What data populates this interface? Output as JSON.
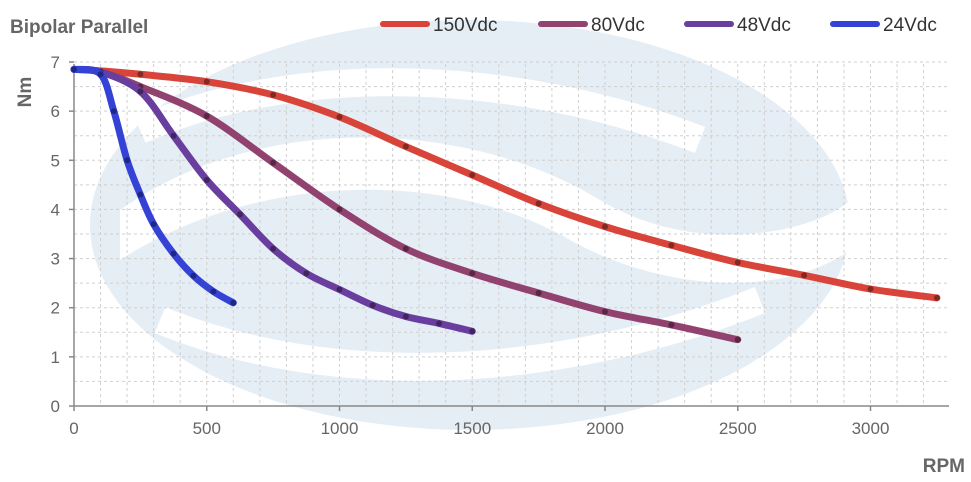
{
  "chart_data": {
    "type": "line",
    "title": "Bipolar Parallel",
    "xlabel": "RPM",
    "ylabel": "Nm",
    "xlim": [
      0,
      3300
    ],
    "ylim": [
      0,
      7
    ],
    "xticks": [
      0,
      500,
      1000,
      1500,
      2000,
      2500,
      3000
    ],
    "yticks": [
      0,
      1,
      2,
      3,
      4,
      5,
      6,
      7
    ],
    "grid": true,
    "legend_position": "top-right",
    "series": [
      {
        "name": "150Vdc",
        "color": "#d9443a",
        "points": [
          [
            0,
            6.85
          ],
          [
            100,
            6.82
          ],
          [
            250,
            6.75
          ],
          [
            500,
            6.6
          ],
          [
            750,
            6.33
          ],
          [
            1000,
            5.88
          ],
          [
            1250,
            5.28
          ],
          [
            1500,
            4.7
          ],
          [
            1750,
            4.12
          ],
          [
            2000,
            3.65
          ],
          [
            2250,
            3.27
          ],
          [
            2500,
            2.92
          ],
          [
            2750,
            2.66
          ],
          [
            3000,
            2.38
          ],
          [
            3250,
            2.2
          ]
        ]
      },
      {
        "name": "80Vdc",
        "color": "#91426f",
        "points": [
          [
            0,
            6.85
          ],
          [
            100,
            6.8
          ],
          [
            250,
            6.5
          ],
          [
            500,
            5.9
          ],
          [
            750,
            4.95
          ],
          [
            1000,
            4.0
          ],
          [
            1250,
            3.2
          ],
          [
            1500,
            2.7
          ],
          [
            1750,
            2.3
          ],
          [
            2000,
            1.92
          ],
          [
            2250,
            1.65
          ],
          [
            2500,
            1.35
          ]
        ]
      },
      {
        "name": "48Vdc",
        "color": "#6a3e9e",
        "points": [
          [
            0,
            6.85
          ],
          [
            100,
            6.8
          ],
          [
            250,
            6.4
          ],
          [
            375,
            5.5
          ],
          [
            500,
            4.6
          ],
          [
            625,
            3.9
          ],
          [
            750,
            3.2
          ],
          [
            875,
            2.7
          ],
          [
            1000,
            2.37
          ],
          [
            1125,
            2.05
          ],
          [
            1250,
            1.82
          ],
          [
            1375,
            1.68
          ],
          [
            1500,
            1.52
          ]
        ]
      },
      {
        "name": "24Vdc",
        "color": "#3443d6",
        "points": [
          [
            0,
            6.85
          ],
          [
            100,
            6.75
          ],
          [
            150,
            6.0
          ],
          [
            200,
            5.0
          ],
          [
            250,
            4.3
          ],
          [
            300,
            3.7
          ],
          [
            375,
            3.1
          ],
          [
            450,
            2.65
          ],
          [
            525,
            2.33
          ],
          [
            600,
            2.1
          ]
        ]
      }
    ]
  }
}
